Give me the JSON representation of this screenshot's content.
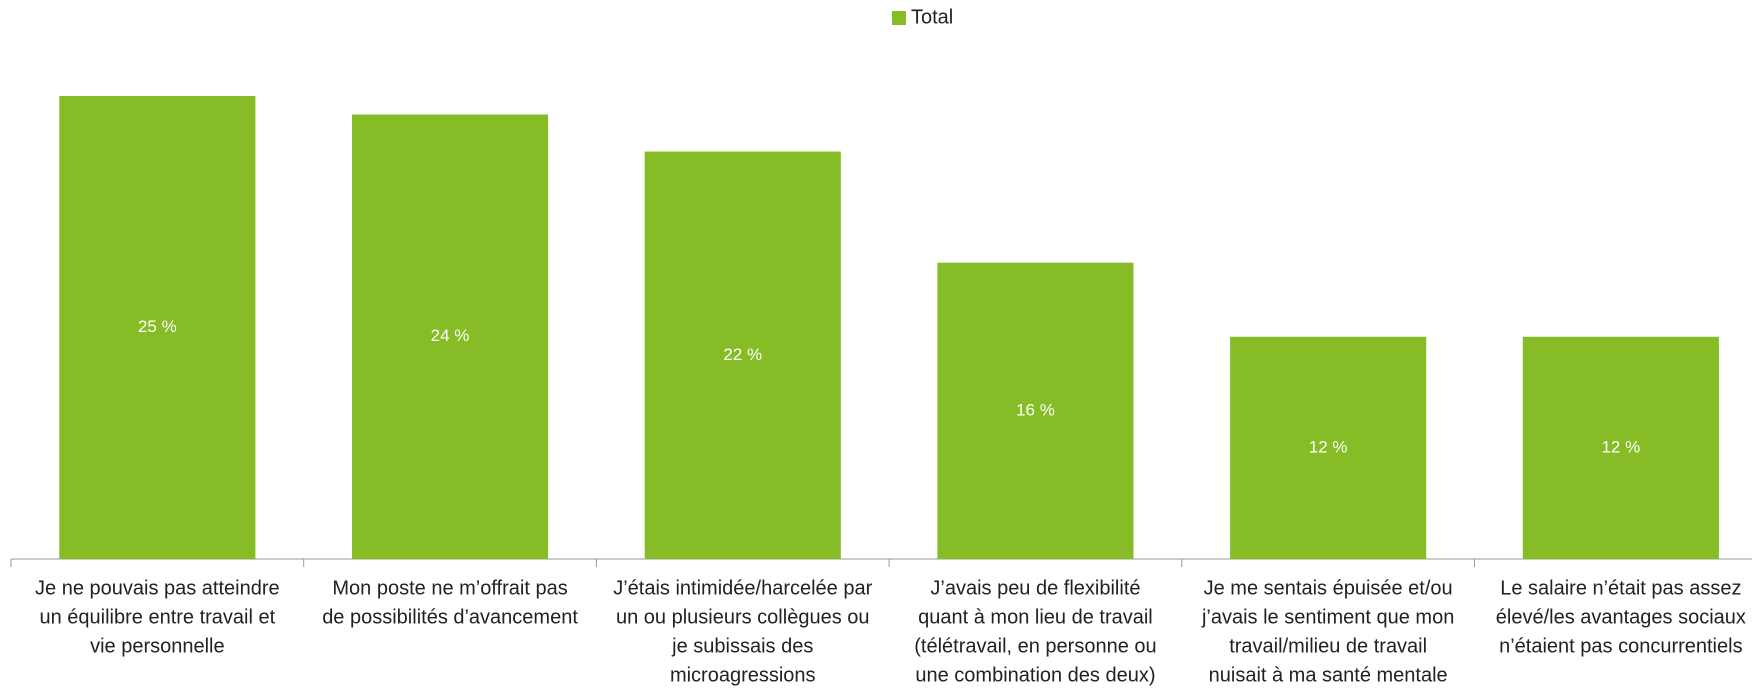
{
  "chart_data": {
    "type": "bar",
    "legend": "Total",
    "color": "#86bc25",
    "categories": [
      [
        "Je ne pouvais pas atteindre",
        "un équilibre entre travail et",
        "vie personnelle"
      ],
      [
        "Mon poste ne m’offrait pas",
        "de possibilités d’avancement"
      ],
      [
        "J’étais intimidée/harcelée par",
        "un ou plusieurs collègues ou",
        "je subissais des",
        "microagressions"
      ],
      [
        "J’avais peu de flexibilité",
        "quant à mon lieu de travail",
        "(télétravail, en personne ou",
        "une combination des deux)"
      ],
      [
        "Je me sentais épuisée et/ou",
        "j’avais le sentiment que mon",
        "travail/milieu de travail",
        "nuisait à ma santé mentale"
      ],
      [
        "Le salaire n’était pas assez",
        "élevé/les avantages sociaux",
        "n’étaient pas concurrentiels"
      ]
    ],
    "values": [
      25,
      24,
      22,
      16,
      12,
      12
    ],
    "value_labels": [
      "25 %",
      "24 %",
      "22 %",
      "16 %",
      "12 %",
      "12 %"
    ],
    "ylim": [
      0,
      25
    ]
  }
}
